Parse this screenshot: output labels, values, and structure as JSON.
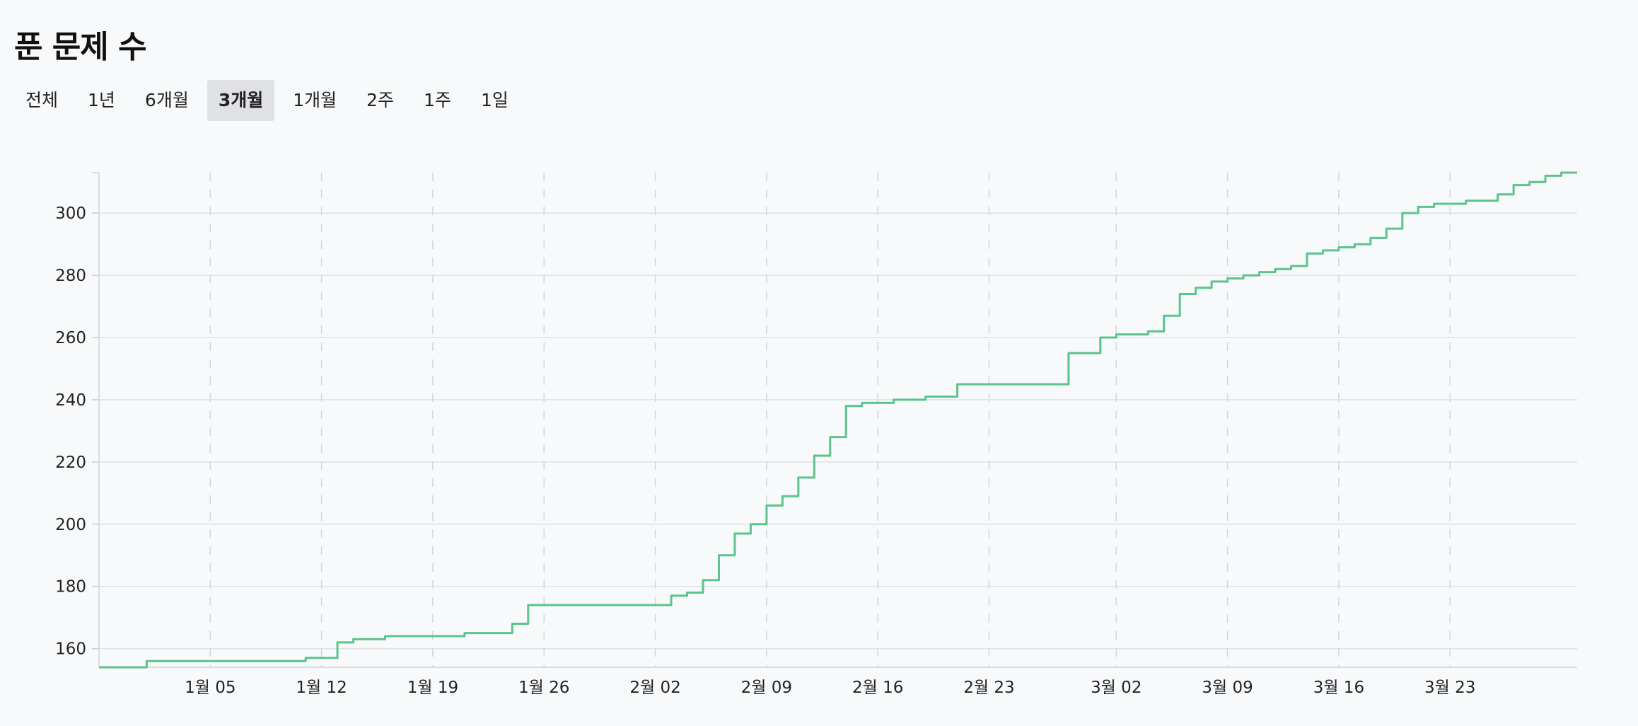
{
  "header": {
    "title": "푼 문제 수"
  },
  "range_tabs": {
    "options": [
      "전체",
      "1년",
      "6개월",
      "3개월",
      "1개월",
      "2주",
      "1주",
      "1일"
    ],
    "selected": "3개월"
  },
  "colors": {
    "line": "#5cc48b",
    "grid": "#dfe2e6",
    "vgrid": "#d3d6da",
    "active_tab": "#dfe1e4"
  },
  "chart_data": {
    "type": "line",
    "step": true,
    "title": "",
    "xlabel": "",
    "ylabel": "",
    "grid": true,
    "x_ticks": [
      "1월 05",
      "1월 12",
      "1월 19",
      "1월 26",
      "2월 02",
      "2월 09",
      "2월 16",
      "2월 23",
      "3월 02",
      "3월 09",
      "3월 16",
      "3월 23"
    ],
    "y_ticks": [
      160,
      180,
      200,
      220,
      240,
      260,
      280,
      300
    ],
    "ylim": [
      154,
      313
    ],
    "xlim": [
      "12-29",
      "03-31"
    ],
    "series": [
      {
        "x": [
          "12-29",
          "01-01",
          "01-11",
          "01-13",
          "01-14",
          "01-16",
          "01-21",
          "01-24",
          "01-25",
          "02-03",
          "02-04",
          "02-05",
          "02-06",
          "02-07",
          "02-08",
          "02-09",
          "02-10",
          "02-11",
          "02-12",
          "02-13",
          "02-14",
          "02-15",
          "02-16",
          "02-17",
          "02-19",
          "02-21",
          "02-22",
          "02-28",
          "03-01",
          "03-02",
          "03-04",
          "03-05",
          "03-06",
          "03-07",
          "03-08",
          "03-09",
          "03-10",
          "03-11",
          "03-12",
          "03-13",
          "03-14",
          "03-15",
          "03-16",
          "03-17",
          "03-18",
          "03-19",
          "03-20",
          "03-21",
          "03-22",
          "03-23",
          "03-24",
          "03-26",
          "03-27",
          "03-28",
          "03-29",
          "03-30"
        ],
        "y": [
          154,
          156,
          157,
          162,
          163,
          164,
          165,
          168,
          174,
          177,
          178,
          182,
          190,
          197,
          200,
          206,
          209,
          215,
          222,
          228,
          238,
          239,
          239,
          240,
          241,
          245,
          245,
          255,
          260,
          261,
          262,
          267,
          274,
          276,
          278,
          279,
          280,
          281,
          282,
          283,
          287,
          288,
          289,
          290,
          292,
          295,
          300,
          302,
          303,
          303,
          304,
          306,
          309,
          310,
          312,
          313
        ]
      }
    ]
  }
}
